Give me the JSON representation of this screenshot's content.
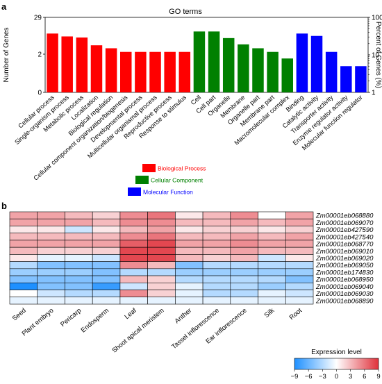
{
  "panels": {
    "a": "a",
    "b": "b"
  },
  "chart_data": [
    {
      "type": "bar",
      "title": "GO terms",
      "ylabel_left": "Number of Genes",
      "ylabel_right": "Percent of Genes (%)",
      "left_ticks": [
        "29",
        "2",
        "0"
      ],
      "right_ticks": [
        "100",
        "10",
        "1"
      ],
      "yscale": "log",
      "categories": [
        "Cellular process",
        "Single-organism process",
        "Metabolic process",
        "Localization",
        "Biological regulation",
        "Cellular component organization/biogenesis",
        "Developmental process",
        "Multicellular organismal process",
        "Reproductive process",
        "Response to stimulus",
        "Cell",
        "Cell part",
        "Organelle",
        "Membrane",
        "Organelle part",
        "Membrane part",
        "Macromolecular complex",
        "Binding",
        "Catalytic activity",
        "Transporter activity",
        "Enzyme regulator activity",
        "Molecular function regulator"
      ],
      "groups": [
        "bp",
        "bp",
        "bp",
        "bp",
        "bp",
        "bp",
        "bp",
        "bp",
        "bp",
        "bp",
        "cc",
        "cc",
        "cc",
        "cc",
        "cc",
        "cc",
        "cc",
        "mf",
        "mf",
        "mf",
        "mf",
        "mf"
      ],
      "values_percent": [
        37,
        31,
        29,
        18,
        15,
        12,
        12,
        12,
        12,
        12,
        42,
        42,
        28,
        19,
        15,
        12,
        8,
        37,
        32,
        12,
        5,
        5
      ],
      "legend": [
        {
          "key": "bp",
          "label": "Biological Process",
          "color": "#ff0000"
        },
        {
          "key": "cc",
          "label": "Cellular Component",
          "color": "#008000"
        },
        {
          "key": "mf",
          "label": "Molecular Function",
          "color": "#0000ff"
        }
      ],
      "legend_placement": "bottom-center",
      "grid": false
    },
    {
      "type": "heatmap",
      "x_labels": [
        "Seed",
        "Plant embryo",
        "Pericarp",
        "Endosperm",
        "Leaf",
        "Shoot apical meristem",
        "Anther",
        "Tassel inflorescence",
        "Ear inflorescence",
        "Silk",
        "Root"
      ],
      "y_labels": [
        "Zm00001eb068880",
        "Zm00001eb069070",
        "Zm00001eb427590",
        "Zm00001eb427540",
        "Zm00001eb068770",
        "Zm00001eb069010",
        "Zm00001eb069020",
        "Zm00001eb069050",
        "Zm00001eb174830",
        "Zm00001eb068950",
        "Zm00001eb069040",
        "Zm00001eb069030",
        "Zm00001eb068890"
      ],
      "values": [
        [
          4,
          4,
          3,
          2,
          5,
          6,
          1,
          3,
          5,
          0,
          4
        ],
        [
          4,
          4,
          4,
          3,
          5,
          5,
          3,
          3,
          4,
          3,
          4
        ],
        [
          1,
          1,
          -2,
          1,
          3,
          4,
          1,
          2,
          2,
          1,
          2
        ],
        [
          3,
          3,
          3,
          3,
          5,
          6,
          3,
          3,
          4,
          3,
          4
        ],
        [
          4,
          4,
          4,
          4,
          7,
          8,
          4,
          4,
          5,
          4,
          4
        ],
        [
          3,
          2,
          2,
          2,
          8,
          8,
          3,
          3,
          4,
          3,
          3
        ],
        [
          1,
          -1,
          -1,
          -2,
          8,
          8,
          3,
          2,
          3,
          -2,
          1
        ],
        [
          -3,
          -5,
          -5,
          -5,
          5,
          3,
          -5,
          -3,
          -3,
          -3,
          -3
        ],
        [
          -4,
          -4,
          -4,
          -5,
          -3,
          -3,
          -4,
          -4,
          -4,
          -4,
          -4
        ],
        [
          -5,
          -5,
          -5,
          -5,
          3,
          2,
          -3,
          -3,
          -3,
          -3,
          -5
        ],
        [
          -9,
          -5,
          -5,
          -8,
          -2,
          2,
          -1,
          -3,
          -3,
          -4,
          -3
        ],
        [
          0,
          -2,
          -3,
          -3,
          5,
          2,
          -1,
          -3,
          -3,
          -1,
          -2
        ],
        [
          -1,
          -1,
          -1,
          -1,
          -1,
          -1,
          -1,
          -1,
          -1,
          -1,
          -1
        ]
      ],
      "color_scale": {
        "min": -9,
        "max": 9,
        "low_color": "#1e90ff",
        "mid_color": "#ffffff",
        "high_color": "#e0303a"
      },
      "colorbar_title": "Expression level",
      "colorbar_ticks": [
        "−9",
        "−6",
        "−3",
        "0",
        "3",
        "6",
        "9"
      ]
    }
  ]
}
